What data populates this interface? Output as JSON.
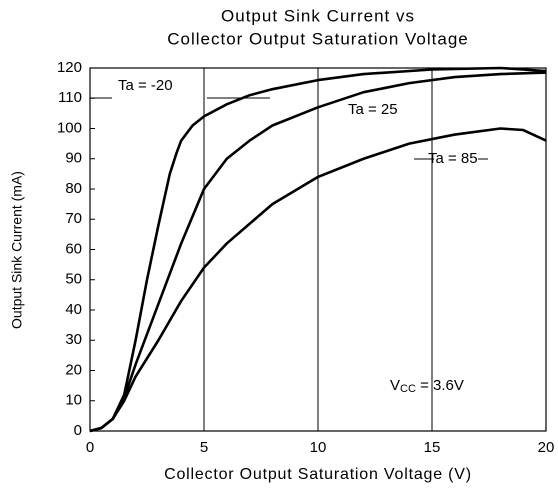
{
  "chart_data": {
    "type": "line",
    "title": [
      "Output Sink Current vs",
      "Collector Output Saturation Voltage"
    ],
    "x_label": "Collector Output Saturation Voltage (V)",
    "y_label": "Output Sink Current (mA)",
    "xlim": [
      0,
      20
    ],
    "ylim": [
      0,
      120
    ],
    "xticks": [
      0,
      5,
      10,
      15,
      20
    ],
    "yticks": [
      0,
      10,
      20,
      30,
      40,
      50,
      60,
      70,
      80,
      90,
      100,
      110,
      120
    ],
    "grid": "x",
    "series": [
      {
        "name": "Ta = -20",
        "color": "#000000",
        "x": [
          0,
          0.5,
          1,
          1.5,
          2,
          2.5,
          3,
          3.5,
          3.8,
          4,
          4.5,
          5,
          6,
          7,
          8,
          10,
          12,
          15,
          18,
          20
        ],
        "values": [
          0,
          1,
          4,
          12,
          30,
          50,
          68,
          85,
          92,
          96,
          101,
          104,
          108,
          111,
          113,
          116,
          118,
          119.5,
          120,
          119
        ]
      },
      {
        "name": "Ta = 25",
        "color": "#000000",
        "x": [
          0,
          0.5,
          1,
          1.5,
          2,
          3,
          4,
          5,
          6,
          7,
          8,
          10,
          12,
          14,
          16,
          18,
          20
        ],
        "values": [
          0,
          1,
          4,
          11,
          22,
          42,
          62,
          80,
          90,
          96,
          101,
          107,
          112,
          115,
          117,
          118,
          118.5
        ]
      },
      {
        "name": "Ta = 85",
        "color": "#000000",
        "x": [
          0,
          0.5,
          1,
          1.5,
          2,
          3,
          4,
          5,
          6,
          8,
          10,
          12,
          14,
          16,
          18,
          19,
          20
        ],
        "values": [
          0,
          1,
          4,
          10,
          18,
          30,
          43,
          54,
          62,
          75,
          84,
          90,
          95,
          98,
          100,
          99.5,
          96
        ]
      }
    ],
    "condition": {
      "main": "V",
      "sub": "CC",
      "rest": " = 3.6V"
    }
  }
}
